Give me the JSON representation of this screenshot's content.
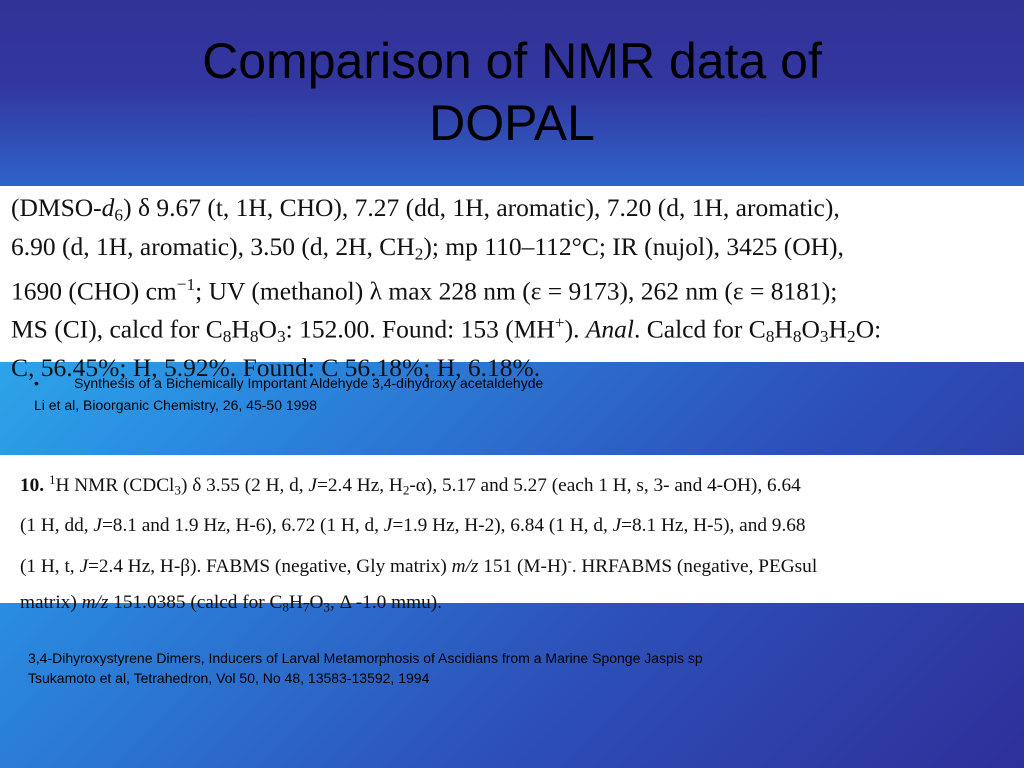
{
  "title": {
    "line1": "Comparison of NMR data of",
    "line2": "DOPAL"
  },
  "excerpt1": {
    "line1": {
      "p1": "(DMSO-",
      "p2": "d",
      "p3": "6",
      "p4": ") δ 9.67 (t, 1H, CHO), 7.27 (dd, 1H, aromatic), 7.20 (d, 1H, aromatic),"
    },
    "line2": {
      "p1": "6.90 (d, 1H, aromatic), 3.50 (d, 2H, CH",
      "p2": "2",
      "p3": "); mp 110–112°C; IR (nujol), 3425 (OH),"
    },
    "line3": {
      "p1": "1690 (CHO) cm",
      "p2": "−1",
      "p3": "; UV (methanol) λ max 228 nm (ε = 9173), 262 nm (ε = 8181);"
    },
    "line4": {
      "p1": "MS (CI), calcd for C",
      "p2": "8",
      "p3": "H",
      "p4": "8",
      "p5": "O",
      "p6": "3",
      "p7": ": 152.00. Found: 153 (MH",
      "p8": "+",
      "p9": "). ",
      "p10": "Anal",
      "p11": ". Calcd for C",
      "p12": "8",
      "p13": "H",
      "p14": "8",
      "p15": "O",
      "p16": "3",
      "p17": "H",
      "p18": "2",
      "p19": "O:"
    },
    "line5": "C, 56.45%; H, 5.92%. Found: C 56.18%; H, 6.18%."
  },
  "reference1": {
    "bullet": "•",
    "title": "Synthesis of a Bichemically Important Aldehyde 3,4-dihydroxy acetaldehyde",
    "citation": "Li et al, Bioorganic Chemistry, 26, 45-50 1998"
  },
  "excerpt2": {
    "line1": {
      "p1": "10.",
      "p2": "1",
      "p3": "H NMR (CDCl",
      "p4": "3",
      "p5": ") δ 3.55 (2 H, d, ",
      "p6": "J",
      "p7": "=2.4 Hz, H",
      "p8": "2",
      "p9": "-α), 5.17 and 5.27 (each 1 H, s, 3- and 4-OH), 6.64"
    },
    "line2": {
      "p1": "(1 H, dd, ",
      "p2": "J",
      "p3": "=8.1 and 1.9 Hz, H-6), 6.72 (1 H, d, ",
      "p4": "J",
      "p5": "=1.9 Hz, H-2), 6.84 (1 H, d, ",
      "p6": "J",
      "p7": "=8.1 Hz, H-5), and 9.68"
    },
    "line3": {
      "p1": "(1 H, t, ",
      "p2": "J",
      "p3": "=2.4 Hz, H-β).  FABMS (negative, Gly matrix) ",
      "p4": "m/z",
      "p5": "  151 (M-H)",
      "p6": "-",
      "p7": ".  HRFABMS (negative, PEGsul"
    },
    "line4": {
      "p1": "matrix) ",
      "p2": "m/z",
      "p3": "  151.0385 (calcd for C",
      "p4": "8",
      "p5": "H",
      "p6": "7",
      "p7": "O",
      "p8": "3",
      "p9": ", Δ -1.0 mmu)."
    }
  },
  "reference2": {
    "title": "3,4-Dihyroxystyrene Dimers, Inducers of Larval Metamorphosis of Ascidians from a Marine Sponge Jaspis sp",
    "citation": "Tsukamoto et al, Tetrahedron, Vol 50, No 48, 13583-13592, 1994"
  },
  "colors": {
    "title_band": "#333396",
    "gradient_light": "#2fc6f4",
    "gradient_dark": "#2e2f9a",
    "panel": "#ffffff"
  }
}
